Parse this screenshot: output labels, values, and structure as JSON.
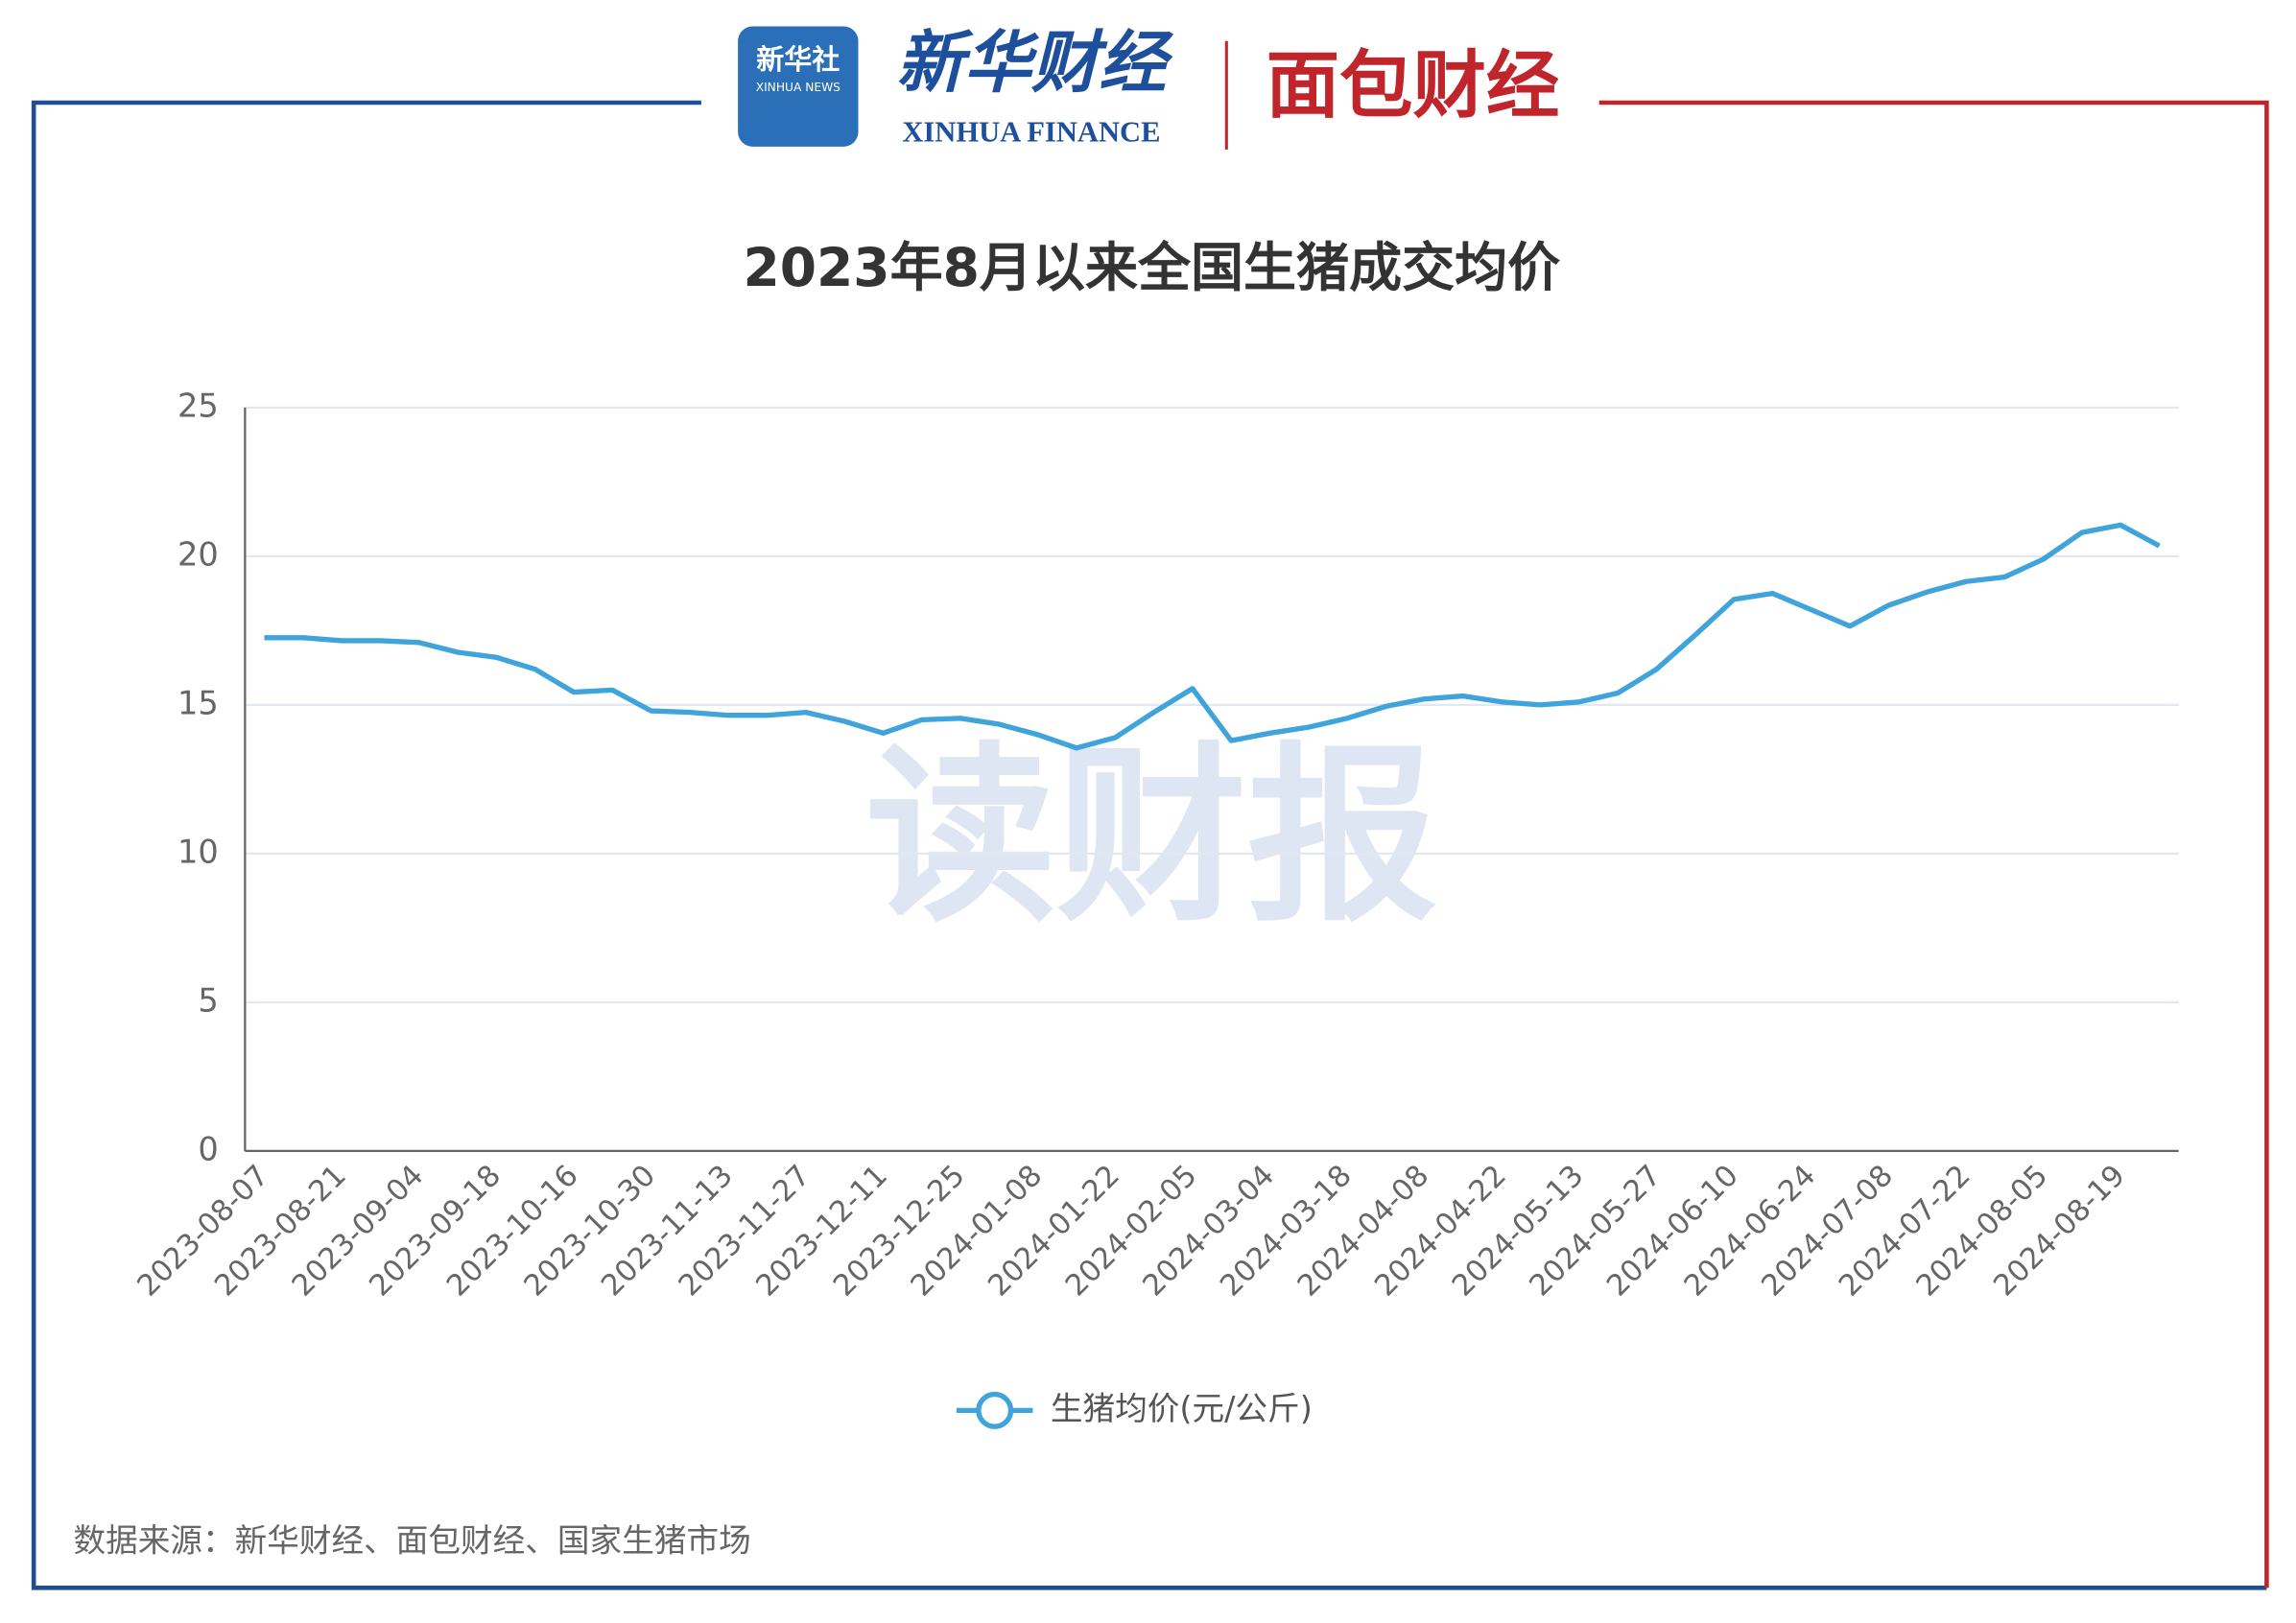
{
  "header": {
    "xinhua_logo": "新华社",
    "xinhua_logo_en": "XINHUA NEWS",
    "finance_logo": "新华财经",
    "finance_logo_en": "XINHUA FINANCE",
    "bread_logo": "面包财经"
  },
  "watermark": "读财报",
  "source": "数据来源：新华财经、面包财经、国家生猪市场",
  "chart_data": {
    "type": "line",
    "title": "2023年8月以来全国生猪成交均价",
    "categories": [
      "2023-08-07",
      null,
      "2023-08-21",
      null,
      "2023-09-04",
      null,
      "2023-09-18",
      null,
      "2023-10-16",
      null,
      "2023-10-30",
      null,
      "2023-11-13",
      null,
      "2023-11-27",
      null,
      "2023-12-11",
      null,
      "2023-12-25",
      null,
      "2024-01-08",
      null,
      "2024-01-22",
      null,
      "2024-02-05",
      null,
      "2024-03-04",
      null,
      "2024-03-18",
      null,
      "2024-04-08",
      null,
      "2024-04-22",
      null,
      "2024-05-13",
      null,
      "2024-05-27",
      null,
      "2024-06-10",
      null,
      "2024-06-24",
      null,
      "2024-07-08",
      null,
      "2024-07-22",
      null,
      "2024-08-05",
      null,
      "2024-08-19",
      null
    ],
    "series": [
      {
        "name": "生猪均价(元/公斤)",
        "color": "#3fa3dc",
        "values": [
          17.26,
          17.26,
          17.16,
          17.16,
          17.1,
          16.77,
          16.6,
          16.2,
          15.43,
          15.5,
          14.8,
          14.75,
          14.65,
          14.65,
          14.75,
          14.45,
          14.05,
          14.5,
          14.55,
          14.35,
          14.0,
          13.55,
          13.9,
          14.75,
          15.55,
          13.8,
          14.05,
          14.25,
          14.55,
          14.95,
          15.2,
          15.3,
          15.1,
          15.0,
          15.1,
          15.4,
          16.2,
          17.35,
          18.55,
          18.75,
          18.2,
          17.65,
          18.35,
          18.8,
          19.15,
          19.3,
          19.9,
          20.8,
          21.05,
          20.35
        ]
      }
    ],
    "ylim": [
      0,
      25
    ],
    "yticks": [
      0,
      5,
      10,
      15,
      20,
      25
    ],
    "grid": true,
    "legend": "bottom"
  }
}
